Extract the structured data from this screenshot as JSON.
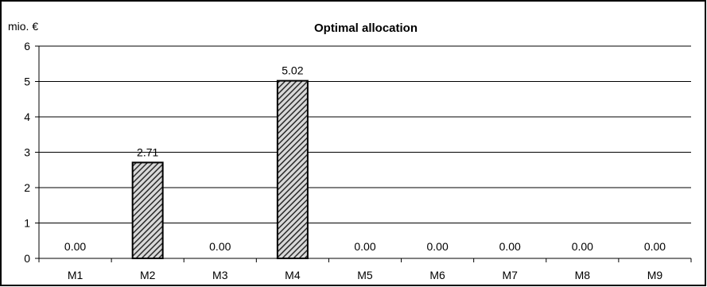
{
  "chart_data": {
    "type": "bar",
    "title": "Optimal allocation",
    "ylabel": "mio. €",
    "xlabel": "",
    "categories": [
      "M1",
      "M2",
      "M3",
      "M4",
      "M5",
      "M6",
      "M7",
      "M8",
      "M9"
    ],
    "values": [
      0.0,
      2.71,
      0.0,
      5.02,
      0.0,
      0.0,
      0.0,
      0.0,
      0.0
    ],
    "data_labels": [
      "0.00",
      "2.71",
      "0.00",
      "5.02",
      "0.00",
      "0.00",
      "0.00",
      "0.00",
      "0.00"
    ],
    "ylim": [
      0,
      6
    ],
    "yticks": [
      0,
      1,
      2,
      3,
      4,
      5,
      6
    ],
    "grid": true,
    "legend": "none",
    "bar_fill": "hatched dark gray"
  }
}
